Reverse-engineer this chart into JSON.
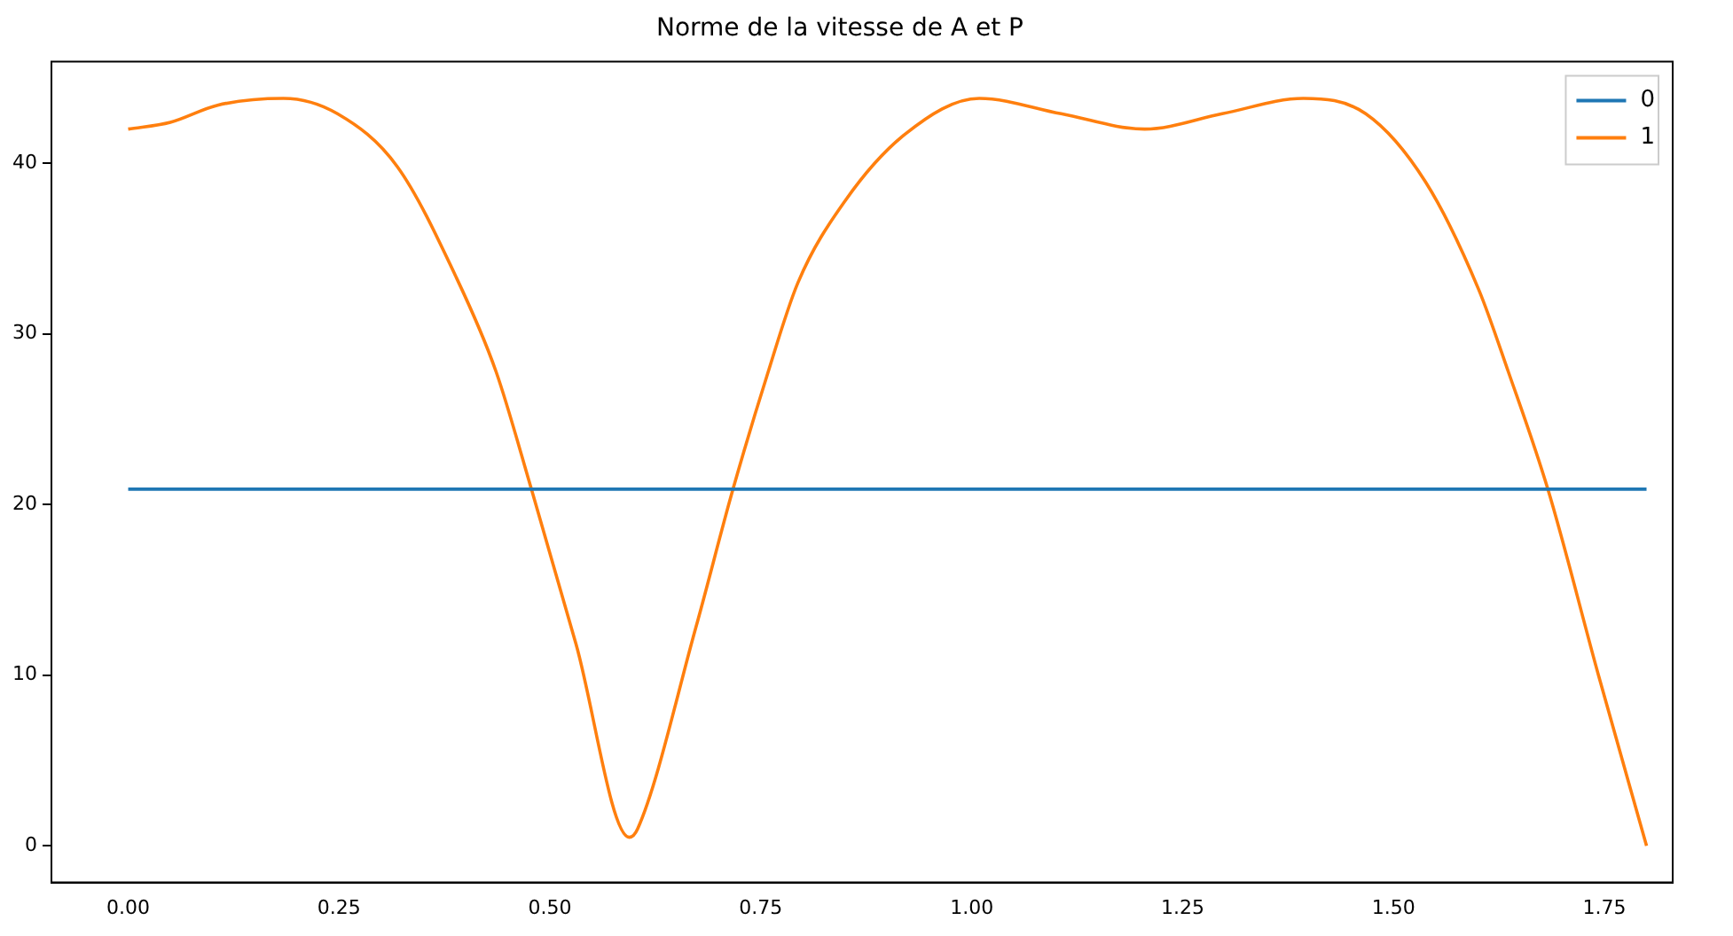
{
  "chart_data": {
    "type": "line",
    "title": "Norme de la vitesse de A et P",
    "xlim": [
      -0.091,
      1.831
    ],
    "xticks": [
      {
        "value": 0,
        "label": "0.00"
      },
      {
        "value": 0.25,
        "label": "0.25"
      },
      {
        "value": 0.5,
        "label": "0.50"
      },
      {
        "value": 0.75,
        "label": "0.75"
      },
      {
        "value": 1,
        "label": "1.00"
      },
      {
        "value": 1.25,
        "label": "1.25"
      },
      {
        "value": 1.5,
        "label": "1.50"
      },
      {
        "value": 1.75,
        "label": "1.75"
      }
    ],
    "ylim": [
      -2.15,
      45.95
    ],
    "yticks": [
      0,
      10,
      20,
      30,
      40
    ],
    "grid": false,
    "legend": "top right",
    "line_style": "solid",
    "marker": "none",
    "series": [
      {
        "name": "0",
        "color": "#1f77b4",
        "x": [
          0,
          1.8
        ],
        "values": [
          20.9,
          20.9
        ]
      },
      {
        "name": "1",
        "color": "#ff7f0e",
        "x": [
          0,
          0.05,
          0.106,
          0.184,
          0.248,
          0.319,
          0.389,
          0.436,
          0.478,
          0.531,
          0.594,
          0.604,
          0.673,
          0.717,
          0.757,
          0.794,
          0.85,
          0.921,
          1.009,
          1.106,
          1.205,
          1.297,
          1.393,
          1.467,
          1.538,
          1.601,
          1.636,
          1.683,
          1.743,
          1.8
        ],
        "values": [
          42.0,
          42.4,
          43.4,
          43.8,
          42.9,
          39.8,
          33.3,
          27.8,
          20.9,
          11.8,
          0.5,
          1.0,
          12.8,
          20.9,
          27.5,
          33.0,
          37.8,
          41.7,
          43.8,
          42.9,
          42.0,
          42.9,
          43.8,
          42.9,
          38.9,
          32.6,
          27.8,
          20.9,
          10.0,
          0
        ]
      }
    ]
  }
}
